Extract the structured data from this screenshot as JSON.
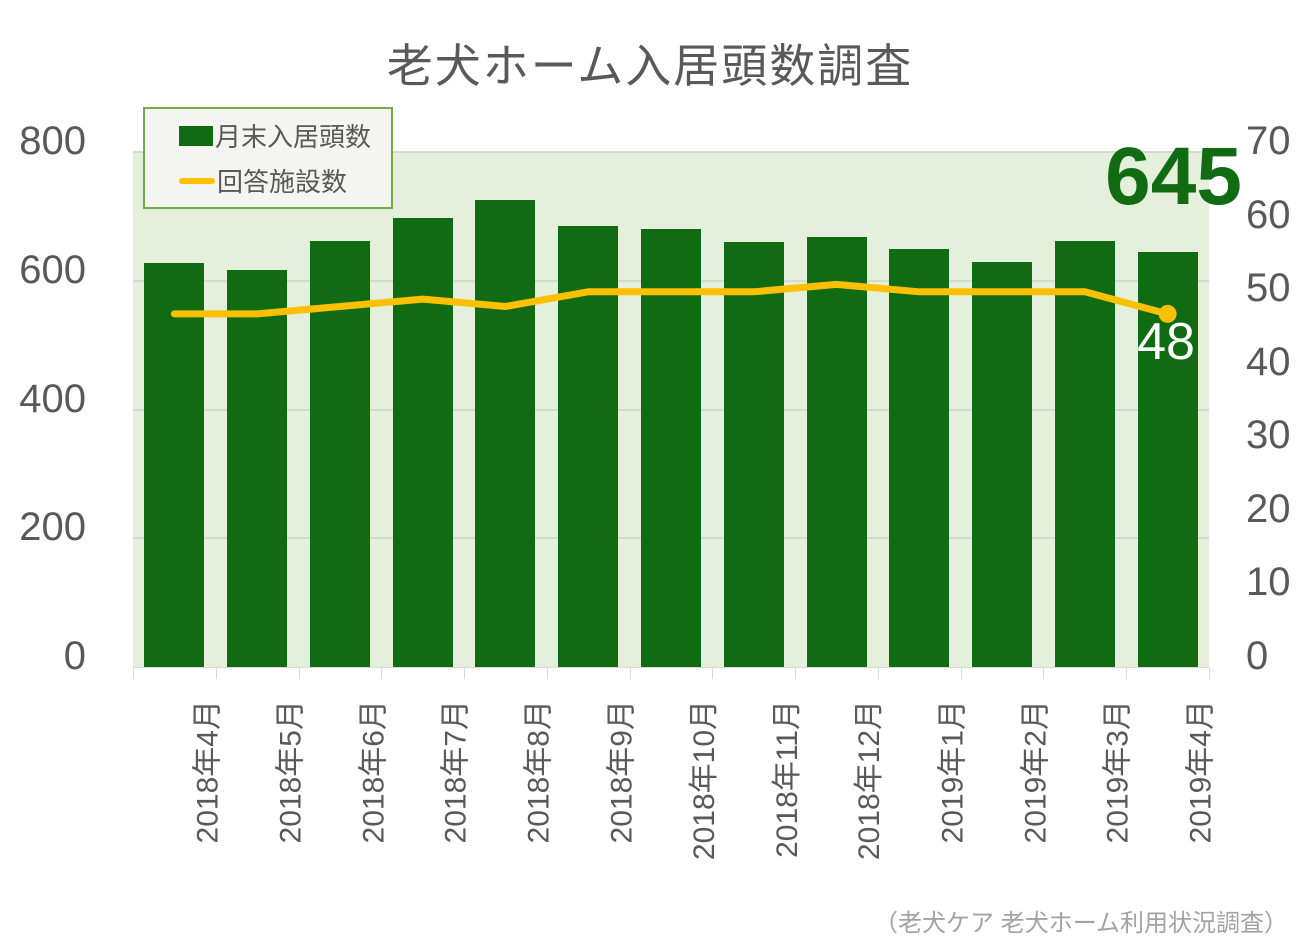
{
  "title": "老犬ホーム入居頭数調査",
  "legend": {
    "bar_label": "月末入居頭数",
    "line_label": "回答施設数"
  },
  "annotations": {
    "last_bar_value": "645",
    "last_line_value": "48"
  },
  "source": "（老犬ケア 老犬ホーム利用状況調査）",
  "colors": {
    "bar_green": "#106b12",
    "line_yellow": "#ffc000",
    "plot_background": "#e4efdc",
    "text_gray": "#595959",
    "gridline": "#d3dacf",
    "legend_border": "#70ad47",
    "source_gray": "#a3a3a3",
    "annotation_white": "#ffffff"
  },
  "chart_data": {
    "type": "bar",
    "subtype": "bar+line combo, dual axis",
    "title": "老犬ホーム入居頭数調査",
    "categories": [
      "2018年4月",
      "2018年5月",
      "2018年6月",
      "2018年7月",
      "2018年8月",
      "2018年9月",
      "2018年10月",
      "2018年11月",
      "2018年12月",
      "2019年1月",
      "2019年2月",
      "2019年3月",
      "2019年4月"
    ],
    "series": [
      {
        "name": "月末入居頭数",
        "type": "bar",
        "axis": "left",
        "color": "#106b12",
        "values": [
          628,
          617,
          662,
          697,
          726,
          685,
          680,
          660,
          668,
          650,
          629,
          661,
          645
        ]
      },
      {
        "name": "回答施設数",
        "type": "line",
        "axis": "right",
        "color": "#ffc000",
        "values": [
          48,
          48,
          49,
          50,
          49,
          51,
          51,
          51,
          52,
          51,
          51,
          51,
          48
        ]
      }
    ],
    "left_axis": {
      "ticks": [
        0,
        200,
        400,
        600,
        800
      ],
      "range": [
        0,
        800
      ]
    },
    "right_axis": {
      "ticks": [
        0,
        10,
        20,
        30,
        40,
        50,
        60,
        70
      ],
      "range": [
        0,
        70
      ]
    },
    "grid": "horizontal gridlines every 200 units (left axis)",
    "legend_position": "top-left inside plot",
    "data_labels": {
      "last_bar": "645",
      "last_line_point": "48"
    },
    "x_tick_label_rotation": -90
  }
}
